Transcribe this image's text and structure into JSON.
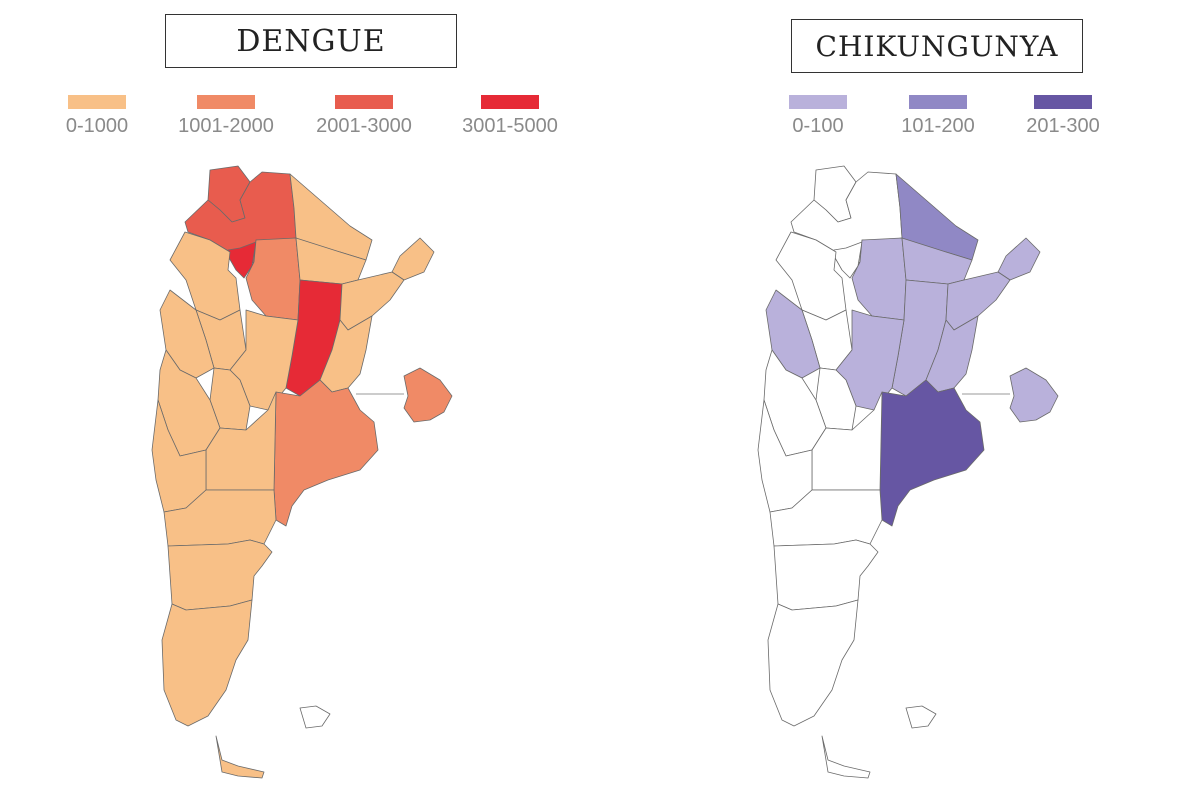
{
  "colors": {
    "dengue": [
      "#F8C087",
      "#F08A66",
      "#E85C4E",
      "#E62A36"
    ],
    "chik": [
      "#FFFFFF",
      "#B9B1DB",
      "#9088C5",
      "#6656A3"
    ]
  },
  "dengue": {
    "title": "DENGUE",
    "legend": [
      {
        "label": "0-1000",
        "level": 0
      },
      {
        "label": "1001-2000",
        "level": 1
      },
      {
        "label": "2001-3000",
        "level": 2
      },
      {
        "label": "3001-5000",
        "level": 3
      }
    ]
  },
  "chikungunya": {
    "title": "CHIKUNGUNYA",
    "legend": [
      {
        "label": "0-100",
        "level": 1
      },
      {
        "label": "101-200",
        "level": 2
      },
      {
        "label": "201-300",
        "level": 3
      }
    ]
  },
  "regions": [
    {
      "id": "jujuy",
      "dengue": 2,
      "chik": 0
    },
    {
      "id": "salta",
      "dengue": 2,
      "chik": 0
    },
    {
      "id": "formosa",
      "dengue": 0,
      "chik": 2
    },
    {
      "id": "tucuman",
      "dengue": 3,
      "chik": 0
    },
    {
      "id": "santiago-del-estero",
      "dengue": 1,
      "chik": 1
    },
    {
      "id": "chaco",
      "dengue": 0,
      "chik": 1
    },
    {
      "id": "misiones",
      "dengue": 0,
      "chik": 1
    },
    {
      "id": "catamarca",
      "dengue": 0,
      "chik": 0
    },
    {
      "id": "la-rioja",
      "dengue": 0,
      "chik": 0
    },
    {
      "id": "santa-fe",
      "dengue": 3,
      "chik": 1
    },
    {
      "id": "corrientes",
      "dengue": 0,
      "chik": 1
    },
    {
      "id": "entre-rios",
      "dengue": 0,
      "chik": 1
    },
    {
      "id": "cordoba",
      "dengue": 0,
      "chik": 1
    },
    {
      "id": "san-juan",
      "dengue": 0,
      "chik": 1
    },
    {
      "id": "san-luis",
      "dengue": 0,
      "chik": 0
    },
    {
      "id": "mendoza",
      "dengue": 0,
      "chik": 0
    },
    {
      "id": "buenos-aires",
      "dengue": 1,
      "chik": 3
    },
    {
      "id": "caba",
      "dengue": 1,
      "chik": 1
    },
    {
      "id": "la-pampa",
      "dengue": 0,
      "chik": 0
    },
    {
      "id": "neuquen",
      "dengue": 0,
      "chik": 0
    },
    {
      "id": "rio-negro",
      "dengue": 0,
      "chik": 0
    },
    {
      "id": "chubut",
      "dengue": 0,
      "chik": 0
    },
    {
      "id": "santa-cruz",
      "dengue": 0,
      "chik": 0
    },
    {
      "id": "tierra-del-fuego",
      "dengue": 0,
      "chik": 0
    },
    {
      "id": "malvinas",
      "dengue": -1,
      "chik": -1
    }
  ]
}
